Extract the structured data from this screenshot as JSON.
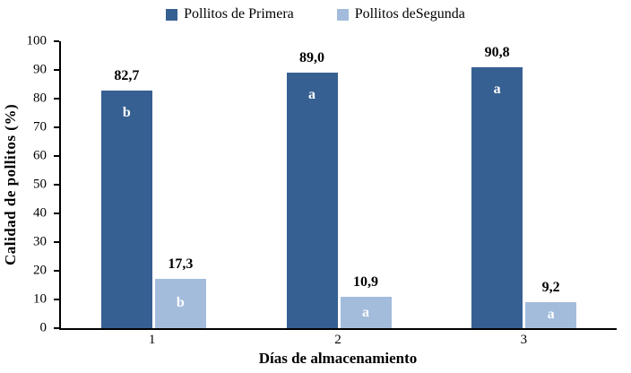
{
  "chart_data": {
    "type": "bar",
    "title": "",
    "categories": [
      "1",
      "2",
      "3"
    ],
    "series": [
      {
        "name": "Pollitos de Primera",
        "color": "#366092",
        "values": [
          82.7,
          89.0,
          90.8
        ],
        "labels": [
          "82,7",
          "89,0",
          "90,8"
        ],
        "letters": [
          "b",
          "a",
          "a"
        ]
      },
      {
        "name": "Pollitos deSegunda",
        "color": "#A3BCDC",
        "values": [
          17.3,
          10.9,
          9.2
        ],
        "labels": [
          "17,3",
          "10,9",
          "9,2"
        ],
        "letters": [
          "b",
          "a",
          "a"
        ]
      }
    ],
    "xlabel": "Días de almacenamiento",
    "ylabel": "Calidad de  pollitos (%)",
    "ylim": [
      0,
      100
    ],
    "yticks": [
      0,
      10,
      20,
      30,
      40,
      50,
      60,
      70,
      80,
      90,
      100
    ],
    "grid": false,
    "legend_position": "top"
  }
}
